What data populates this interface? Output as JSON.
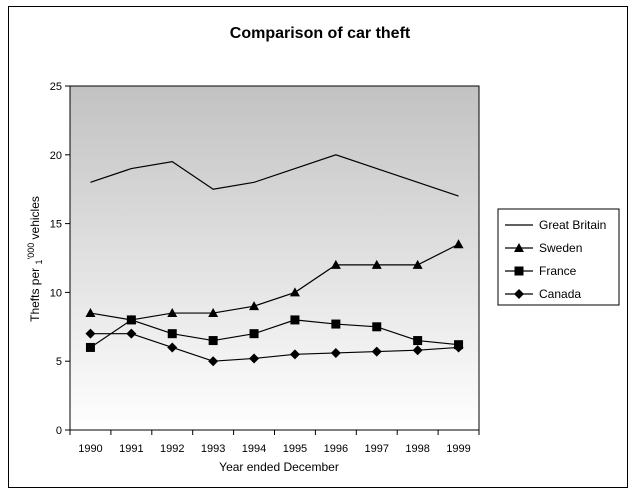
{
  "chart_data": {
    "type": "line",
    "title": "Comparison of car theft",
    "xlabel": "Year ended December",
    "ylabel": "Thefts per 1000 vehicles",
    "ylabel_parts": {
      "before": "Thefts per ",
      "sub": "1",
      "sup": "'000",
      "after": " vehicles"
    },
    "x": [
      "1990",
      "1991",
      "1992",
      "1993",
      "1994",
      "1995",
      "1996",
      "1997",
      "1998",
      "1999"
    ],
    "ylim": [
      0,
      25
    ],
    "yticks": [
      "0",
      "5",
      "10",
      "15",
      "20",
      "25"
    ],
    "grid": false,
    "legend_position": "right",
    "series": [
      {
        "name": "Great Britain",
        "marker": "none",
        "color": "#000000",
        "values": [
          18,
          19,
          19.5,
          17.5,
          18,
          19,
          20,
          19,
          18,
          17
        ]
      },
      {
        "name": "Sweden",
        "marker": "triangle",
        "color": "#000000",
        "values": [
          8.5,
          8,
          8.5,
          8.5,
          9,
          10,
          12,
          12,
          12,
          13.5
        ]
      },
      {
        "name": "France",
        "marker": "square",
        "color": "#000000",
        "values": [
          6,
          8,
          7,
          6.5,
          7,
          8,
          7.7,
          7.5,
          6.5,
          6.2
        ]
      },
      {
        "name": "Canada",
        "marker": "diamond",
        "color": "#000000",
        "values": [
          7,
          7,
          6,
          5,
          5.2,
          5.5,
          5.6,
          5.7,
          5.8,
          6
        ]
      }
    ],
    "plot_background": {
      "top": "#c2c2c2",
      "bottom": "#ffffff"
    }
  }
}
